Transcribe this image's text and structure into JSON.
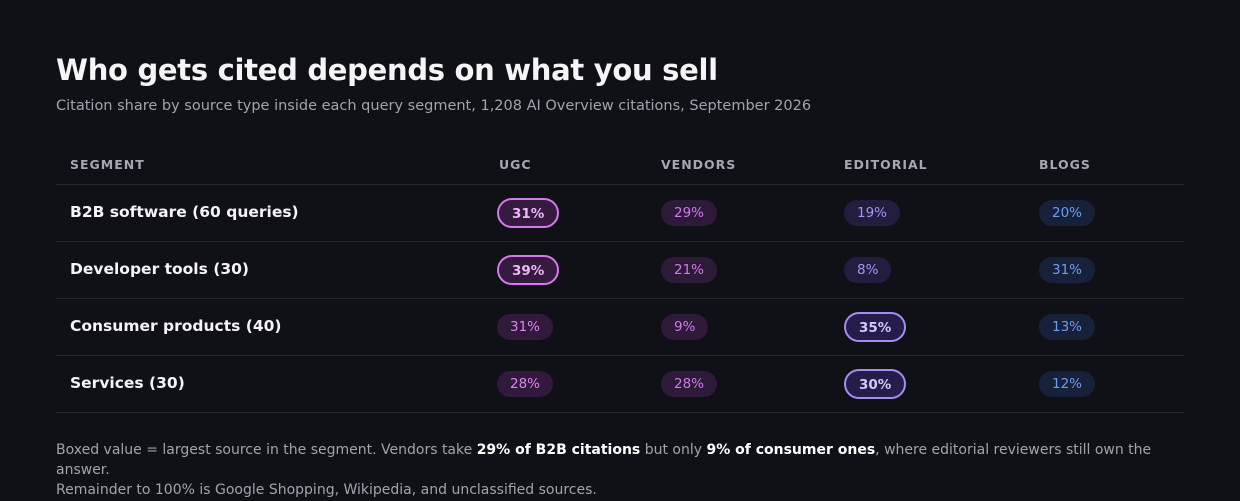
{
  "header": {
    "title": "Who gets cited depends on what you sell",
    "subtitle": "Citation share by source type inside each query segment, 1,208 AI Overview citations, September 2026"
  },
  "table": {
    "columns": [
      "SEGMENT",
      "UGC",
      "VENDORS",
      "EDITORIAL",
      "BLOGS"
    ]
  },
  "chart_data": {
    "type": "table",
    "title": "Who gets cited depends on what you sell",
    "subtitle": "Citation share by source type inside each query segment, 1,208 AI Overview citations, September 2026",
    "columns": [
      "UGC",
      "VENDORS",
      "EDITORIAL",
      "BLOGS"
    ],
    "unit": "%",
    "rows": [
      {
        "segment": "B2B software (60 queries)",
        "values": [
          31,
          29,
          19,
          20
        ],
        "boxed": 0
      },
      {
        "segment": "Developer tools (30)",
        "values": [
          39,
          21,
          8,
          31
        ],
        "boxed": 0
      },
      {
        "segment": "Consumer products (40)",
        "values": [
          31,
          9,
          35,
          13
        ],
        "boxed": 2
      },
      {
        "segment": "Services (30)",
        "values": [
          28,
          28,
          30,
          12
        ],
        "boxed": 2
      }
    ]
  },
  "footnote": {
    "part1": "Boxed value = largest source in the segment. Vendors take ",
    "bold1": "29% of B2B citations",
    "part2": " but only ",
    "bold2": "9% of consumer ones",
    "part3": ", where editorial reviewers still own the answer.",
    "line2": "Remainder to 100% is Google Shopping, Wikipedia, and unclassified sources."
  },
  "colors": {
    "background": "#101017",
    "ugc": "#e083f0",
    "vendors": "#d07be9",
    "editorial": "#a894f4",
    "blogs": "#6f9bf0"
  }
}
